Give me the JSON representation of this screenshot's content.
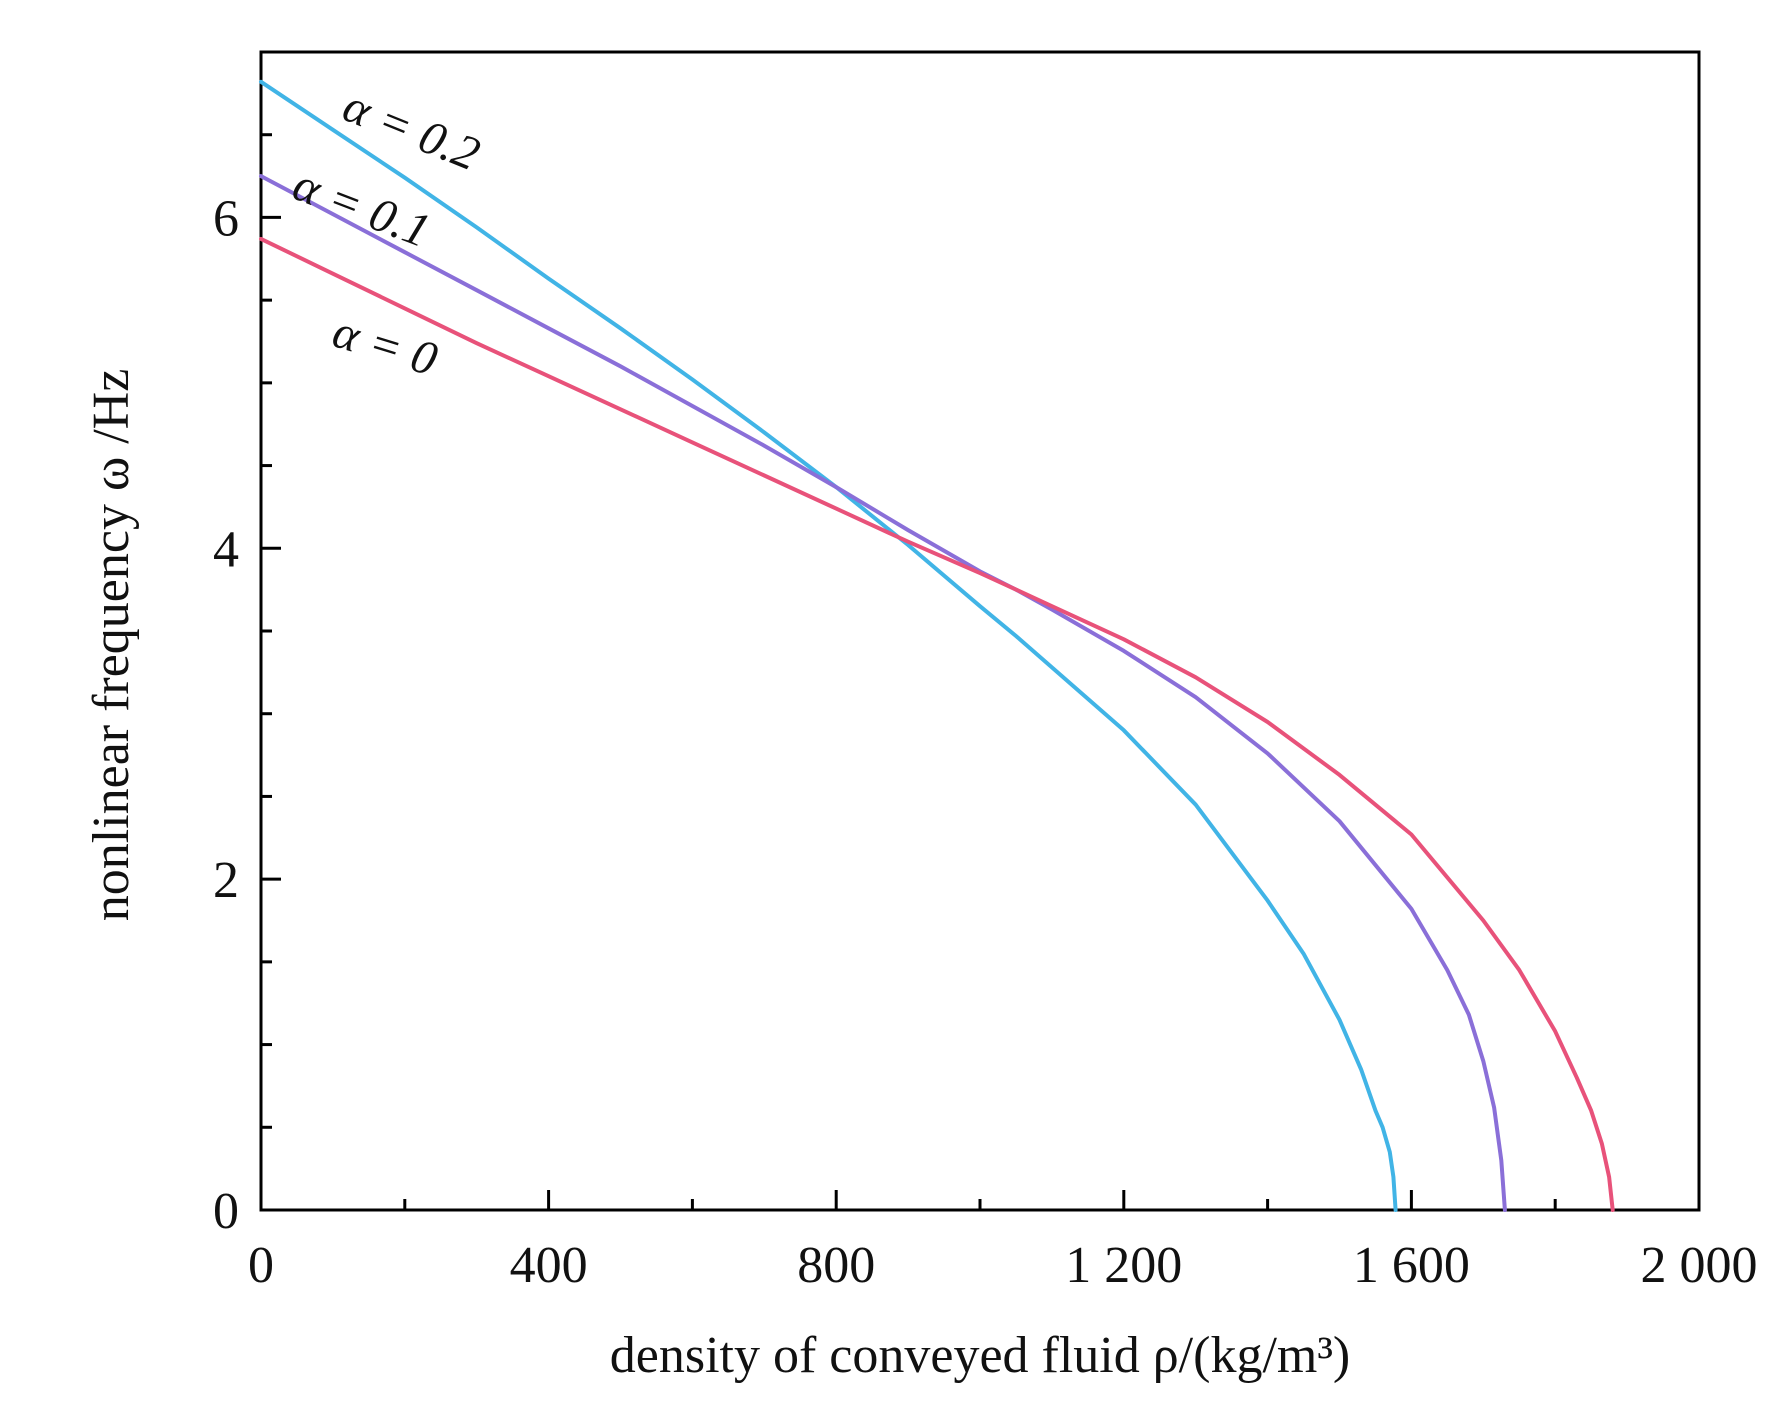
{
  "chart_data": {
    "type": "line",
    "xlabel": "density of conveyed fluid ρ/(kg/m³)",
    "ylabel": "nonlinear frequency ω /Hz",
    "xlim": [
      0,
      2000
    ],
    "ylim": [
      0,
      7
    ],
    "x_ticks": [
      0,
      400,
      800,
      1200,
      1600,
      2000
    ],
    "x_tick_labels": [
      "0",
      "400",
      "800",
      "1 200",
      "1 600",
      "2 000"
    ],
    "y_ticks": [
      0,
      2,
      4,
      6
    ],
    "y_tick_labels": [
      "0",
      "2",
      "4",
      "6"
    ],
    "grid": false,
    "legend": "inline labels",
    "series": [
      {
        "name": "α = 0.2",
        "color": "#41b4e6",
        "x": [
          0,
          100,
          200,
          300,
          400,
          500,
          600,
          700,
          800,
          900,
          1000,
          1050,
          1100,
          1200,
          1300,
          1400,
          1450,
          1500,
          1530,
          1550,
          1560,
          1570,
          1575,
          1578
        ],
        "y": [
          6.82,
          6.53,
          6.24,
          5.94,
          5.63,
          5.33,
          5.02,
          4.7,
          4.37,
          4.02,
          3.65,
          3.47,
          3.28,
          2.9,
          2.45,
          1.87,
          1.55,
          1.15,
          0.85,
          0.6,
          0.5,
          0.35,
          0.2,
          0
        ]
      },
      {
        "name": "α = 0.1",
        "color": "#8a6fd8",
        "x": [
          0,
          100,
          200,
          300,
          400,
          500,
          600,
          700,
          800,
          900,
          1000,
          1050,
          1100,
          1200,
          1300,
          1400,
          1500,
          1600,
          1650,
          1680,
          1700,
          1715,
          1725,
          1730
        ],
        "y": [
          6.25,
          6.02,
          5.79,
          5.56,
          5.33,
          5.1,
          4.86,
          4.62,
          4.37,
          4.11,
          3.86,
          3.75,
          3.63,
          3.38,
          3.1,
          2.76,
          2.35,
          1.82,
          1.45,
          1.18,
          0.9,
          0.62,
          0.3,
          0
        ]
      },
      {
        "name": "α = 0",
        "color": "#e8527a",
        "x": [
          0,
          100,
          200,
          300,
          400,
          500,
          600,
          700,
          800,
          900,
          1000,
          1050,
          1100,
          1200,
          1300,
          1400,
          1500,
          1600,
          1700,
          1750,
          1800,
          1830,
          1850,
          1865,
          1875,
          1880
        ],
        "y": [
          5.87,
          5.66,
          5.45,
          5.24,
          5.04,
          4.84,
          4.64,
          4.44,
          4.24,
          4.04,
          3.85,
          3.75,
          3.65,
          3.45,
          3.22,
          2.95,
          2.63,
          2.27,
          1.75,
          1.45,
          1.08,
          0.8,
          0.6,
          0.4,
          0.2,
          0
        ]
      }
    ]
  }
}
